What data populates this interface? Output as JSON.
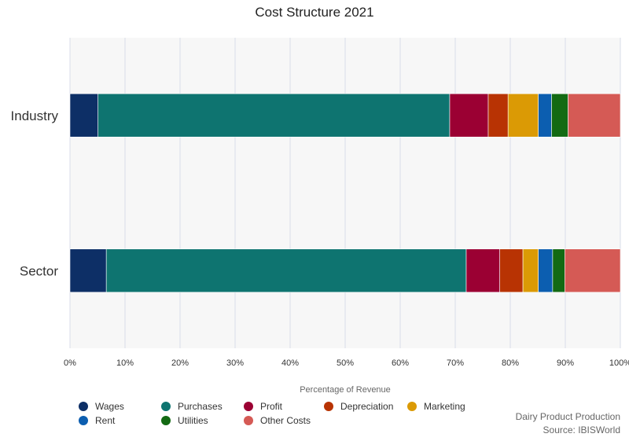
{
  "chart_data": {
    "type": "bar",
    "orientation": "horizontal",
    "stacked": true,
    "title": "Cost Structure 2021",
    "xlabel": "Percentage of Revenue",
    "ylabel": "",
    "xlim": [
      0,
      100
    ],
    "x_ticks": [
      "0%",
      "10%",
      "20%",
      "30%",
      "40%",
      "50%",
      "60%",
      "70%",
      "80%",
      "90%",
      "100%"
    ],
    "categories": [
      "Industry",
      "Sector"
    ],
    "series": [
      {
        "name": "Wages",
        "color": "#0d2f66",
        "values": [
          5.1,
          6.6
        ]
      },
      {
        "name": "Purchases",
        "color": "#0e7470",
        "values": [
          63.9,
          65.4
        ]
      },
      {
        "name": "Profit",
        "color": "#9b0033",
        "values": [
          7.0,
          6.1
        ]
      },
      {
        "name": "Depreciation",
        "color": "#b83303",
        "values": [
          3.6,
          4.2
        ]
      },
      {
        "name": "Marketing",
        "color": "#db9a05",
        "values": [
          5.5,
          2.8
        ]
      },
      {
        "name": "Rent",
        "color": "#0c5eb0",
        "values": [
          2.4,
          2.6
        ]
      },
      {
        "name": "Utilities",
        "color": "#136a13",
        "values": [
          3.0,
          2.2
        ]
      },
      {
        "name": "Other Costs",
        "color": "#d55a55",
        "values": [
          9.5,
          10.1
        ]
      }
    ],
    "grid": true,
    "legend_position": "bottom-left"
  },
  "footer": {
    "line1": "Dairy Product Production",
    "line2": "Source: IBISWorld"
  }
}
